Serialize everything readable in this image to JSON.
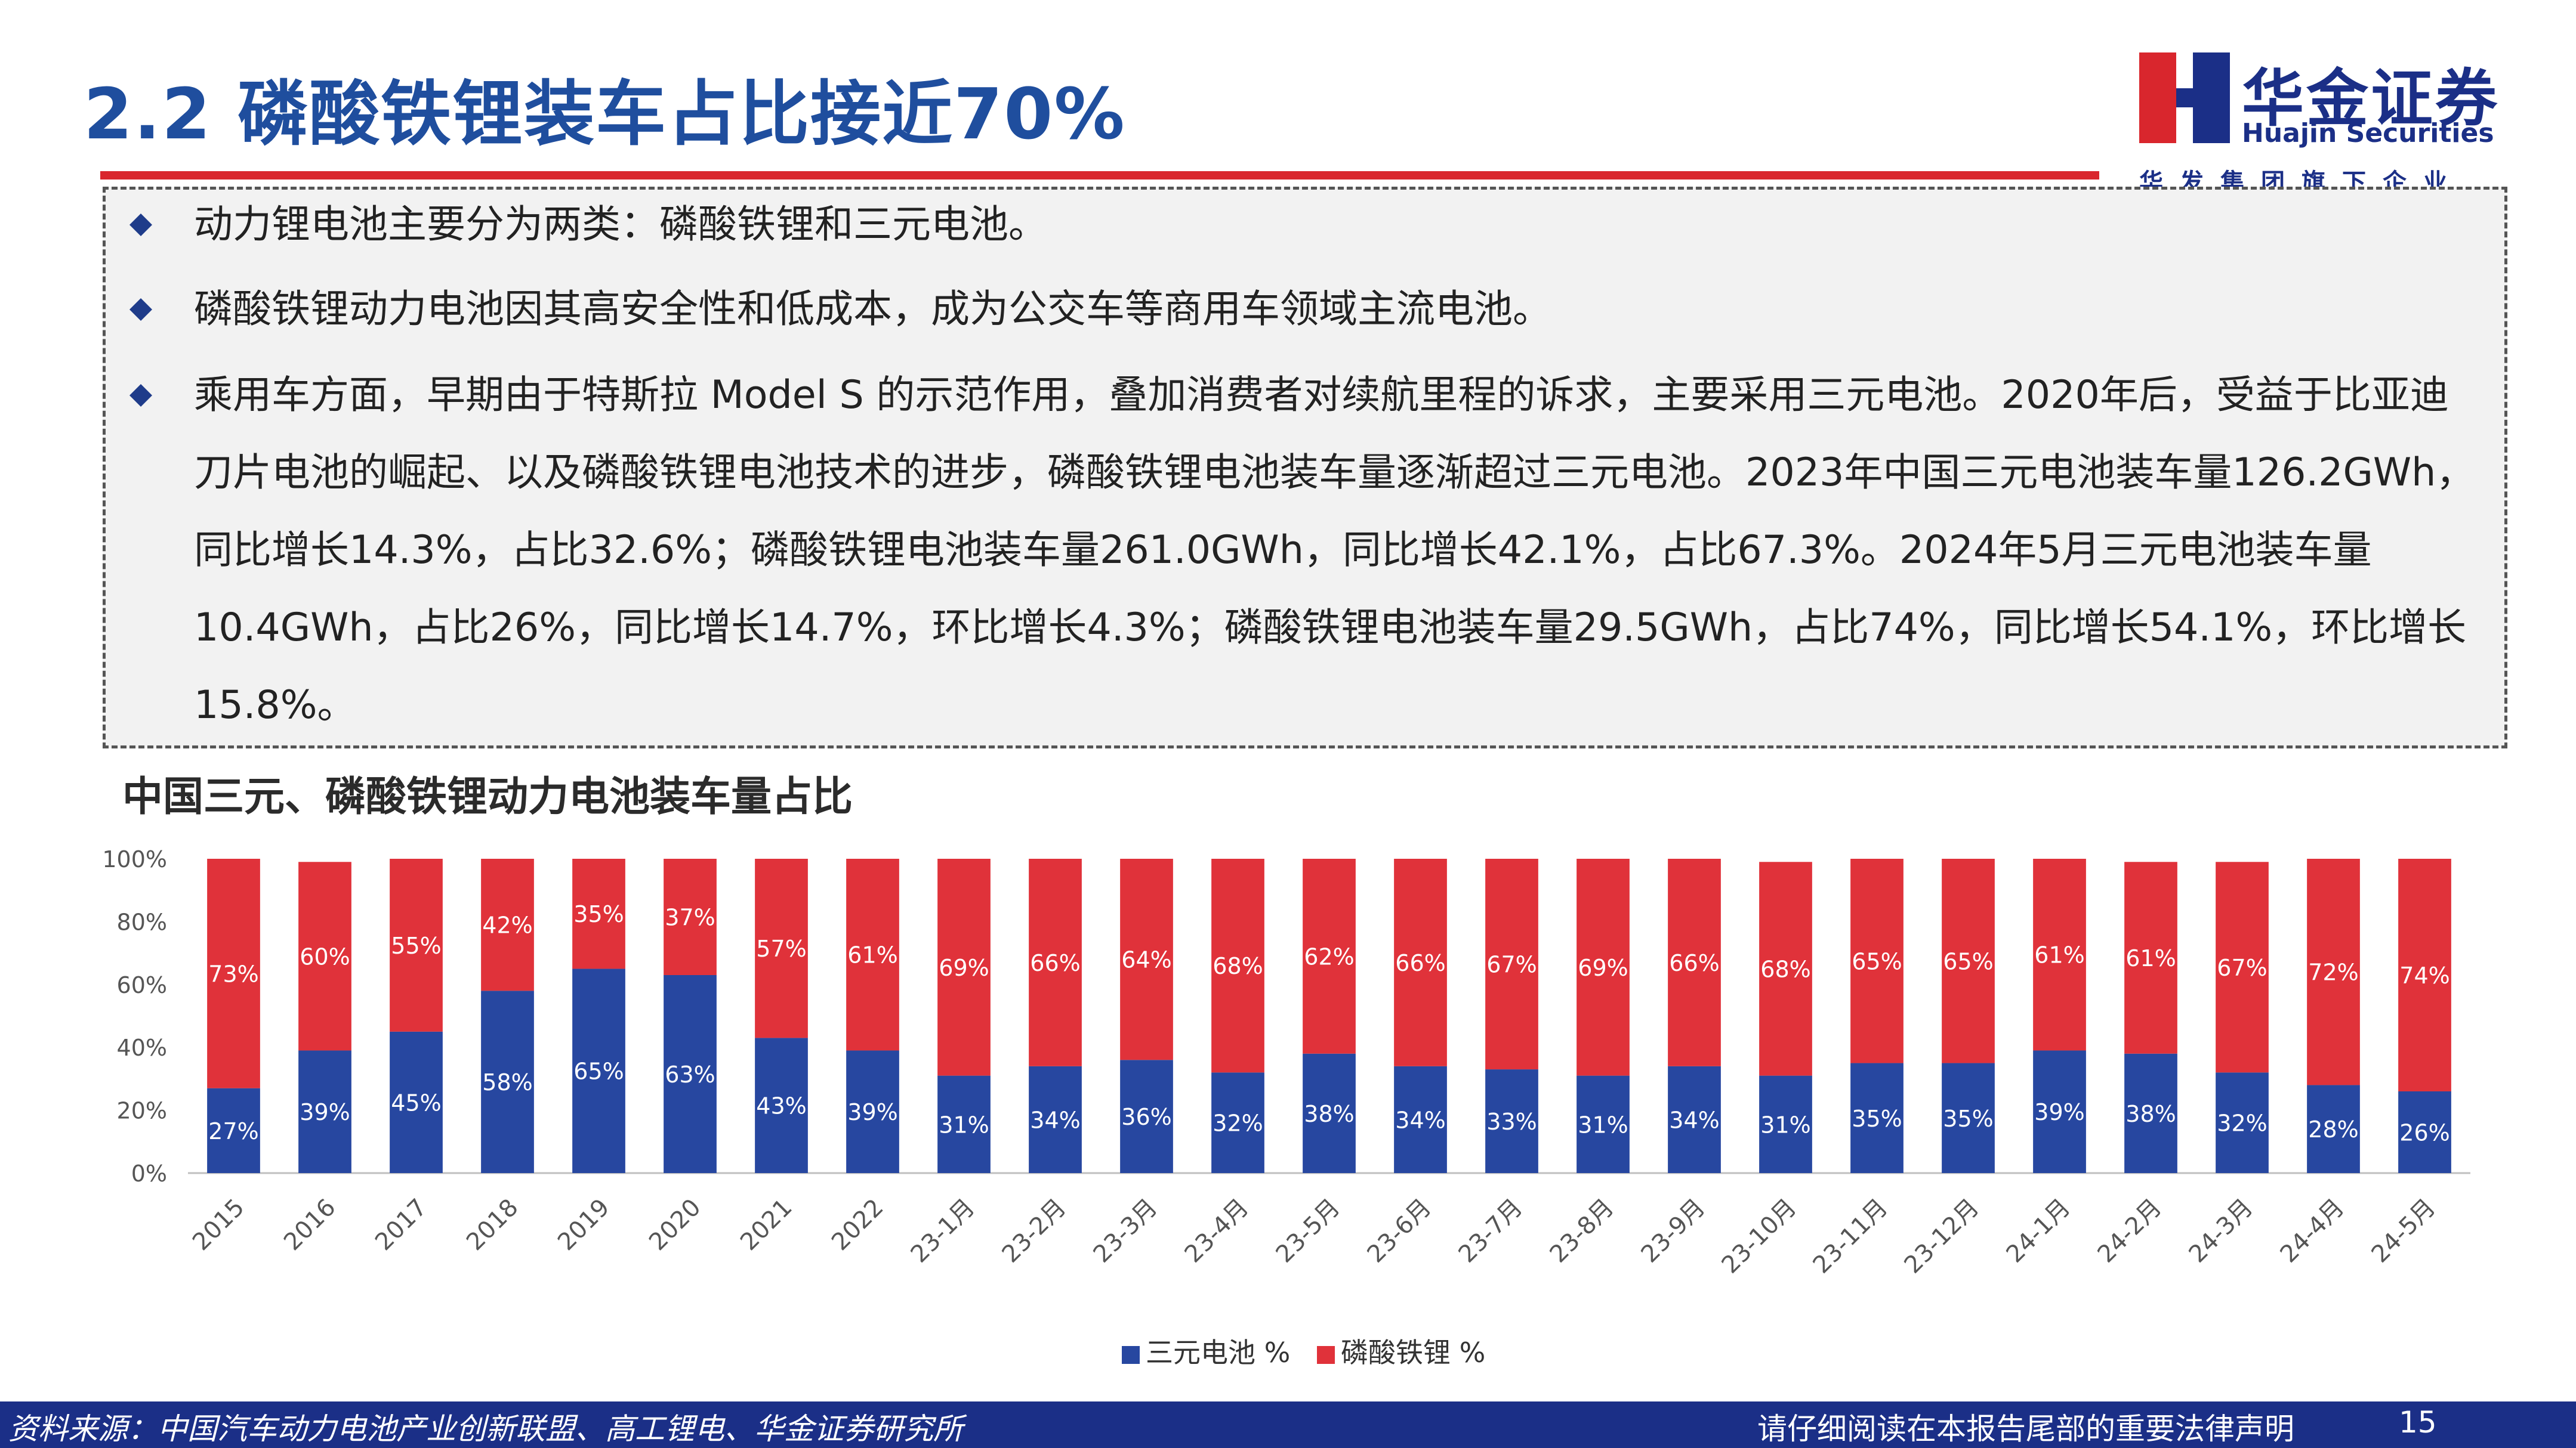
{
  "header": {
    "title": "2.2 磷酸铁锂装车占比接近70%",
    "logo_cn": "华金证券",
    "logo_en": "Huajin Securities",
    "logo_tagline": "华发集团旗下企业",
    "accent_color": "#d9262d",
    "brand_color": "#1b2f87"
  },
  "bullets": [
    "动力锂电池主要分为两类：磷酸铁锂和三元电池。",
    "磷酸铁锂动力电池因其高安全性和低成本，成为公交车等商用车领域主流电池。",
    "乘用车方面，早期由于特斯拉 Model S 的示范作用，叠加消费者对续航里程的诉求，主要采用三元电池。2020年后，受益于比亚迪刀片电池的崛起、以及磷酸铁锂电池技术的进步，磷酸铁锂电池装车量逐渐超过三元电池。2023年中国三元电池装车量126.2GWh，同比增长14.3%，占比32.6%；磷酸铁锂电池装车量261.0GWh，同比增长42.1%，占比67.3%。2024年5月三元电池装车量10.4GWh，占比26%，同比增长14.7%，环比增长4.3%；磷酸铁锂电池装车量29.5GWh，占比74%，同比增长54.1%，环比增长15.8%。"
  ],
  "chart_data": {
    "type": "bar",
    "stacked": true,
    "title": "中国三元、磷酸铁锂动力电池装车量占比",
    "categories": [
      "2015",
      "2016",
      "2017",
      "2018",
      "2019",
      "2020",
      "2021",
      "2022",
      "23-1月",
      "23-2月",
      "23-3月",
      "23-4月",
      "23-5月",
      "23-6月",
      "23-7月",
      "23-8月",
      "23-9月",
      "23-10月",
      "23-11月",
      "23-12月",
      "24-1月",
      "24-2月",
      "24-3月",
      "24-4月",
      "24-5月"
    ],
    "series": [
      {
        "name": "三元电池 %",
        "color": "#2747a0",
        "values": [
          27,
          39,
          45,
          58,
          65,
          63,
          43,
          39,
          31,
          34,
          36,
          32,
          38,
          34,
          33,
          31,
          34,
          31,
          35,
          35,
          39,
          38,
          32,
          28,
          26
        ]
      },
      {
        "name": "磷酸铁锂 %",
        "color": "#e0323a",
        "values": [
          73,
          60,
          55,
          42,
          35,
          37,
          57,
          61,
          69,
          66,
          64,
          68,
          62,
          66,
          67,
          69,
          66,
          68,
          65,
          65,
          61,
          61,
          67,
          72,
          74
        ]
      }
    ],
    "yticks": [
      "0%",
      "20%",
      "40%",
      "60%",
      "80%",
      "100%"
    ],
    "ylim": [
      0,
      100
    ],
    "legend_position": "bottom",
    "grid": false
  },
  "footer": {
    "source": "资料来源：中国汽车动力电池产业创新联盟、高工锂电、华金证券研究所",
    "legal": "请仔细阅读在本报告尾部的重要法律声明",
    "page": "15"
  }
}
